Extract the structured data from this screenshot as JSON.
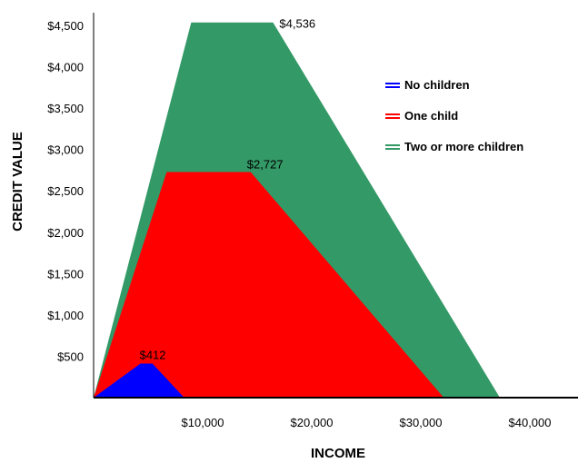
{
  "chart_data": {
    "type": "area",
    "xlabel": "INCOME",
    "ylabel": "CREDIT VALUE",
    "xlim": [
      0,
      42000
    ],
    "ylim": [
      0,
      4600
    ],
    "x_ticks": [
      {
        "value": 10000,
        "label": "$10,000"
      },
      {
        "value": 20000,
        "label": "$20,000"
      },
      {
        "value": 30000,
        "label": "$30,000"
      },
      {
        "value": 40000,
        "label": "$40,000"
      }
    ],
    "y_ticks": [
      {
        "value": 500,
        "label": "$500"
      },
      {
        "value": 1000,
        "label": "$1,000"
      },
      {
        "value": 1500,
        "label": "$1,500"
      },
      {
        "value": 2000,
        "label": "$2,000"
      },
      {
        "value": 2500,
        "label": "$2,500"
      },
      {
        "value": 3000,
        "label": "$3,000"
      },
      {
        "value": 3500,
        "label": "$3,500"
      },
      {
        "value": 4000,
        "label": "$4,000"
      },
      {
        "value": 4500,
        "label": "$4,500"
      }
    ],
    "legend_position": "right",
    "grid": false,
    "series": [
      {
        "name": "Two or more children",
        "color": "#339966",
        "points": [
          [
            0,
            0
          ],
          [
            8950,
            4536
          ],
          [
            16450,
            4536
          ],
          [
            37250,
            0
          ]
        ]
      },
      {
        "name": "One child",
        "color": "#ff0000",
        "points": [
          [
            0,
            0
          ],
          [
            6700,
            2727
          ],
          [
            14400,
            2727
          ],
          [
            32100,
            0
          ]
        ]
      },
      {
        "name": "No children",
        "color": "#0000ff",
        "points": [
          [
            0,
            0
          ],
          [
            4300,
            412
          ],
          [
            5400,
            412
          ],
          [
            8300,
            0
          ]
        ]
      }
    ],
    "annotations": [
      {
        "text": "$4,536",
        "x": 16450,
        "y": 4536
      },
      {
        "text": "$2,727",
        "x": 14400,
        "y": 2727
      },
      {
        "text": "$412",
        "x": 4300,
        "y": 412
      }
    ]
  },
  "legend": {
    "items": [
      {
        "label": "No children",
        "color": "#0000ff"
      },
      {
        "label": "One child",
        "color": "#ff0000"
      },
      {
        "label": "Two or more children",
        "color": "#339966"
      }
    ]
  }
}
